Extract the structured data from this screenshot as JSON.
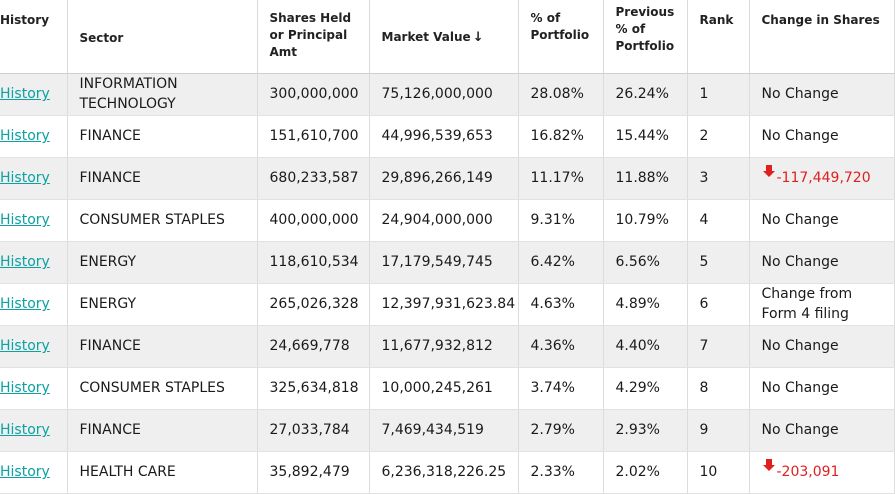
{
  "headers": {
    "history": "History",
    "sector": "Sector",
    "shares": "Shares Held or Principal Amt",
    "market_value": "Market Value",
    "market_value_sort_icon": "arrow-down-icon",
    "pct_portfolio": "% of Portfolio",
    "prev_pct_portfolio": "Previous % of Portfolio",
    "rank": "Rank",
    "change": "Change in Shares"
  },
  "colors": {
    "link": "#0aa2a2",
    "negative": "#e02020",
    "row_stripe": "#efefef"
  },
  "rows": [
    {
      "history": "History",
      "sector": "INFORMATION TECHNOLOGY",
      "shares": "300,000,000",
      "market_value": "75,126,000,000",
      "pct": "28.08%",
      "prev_pct": "26.24%",
      "rank": "1",
      "change": "No Change",
      "change_type": "none"
    },
    {
      "history": "History",
      "sector": "FINANCE",
      "shares": "151,610,700",
      "market_value": "44,996,539,653",
      "pct": "16.82%",
      "prev_pct": "15.44%",
      "rank": "2",
      "change": "No Change",
      "change_type": "none"
    },
    {
      "history": "History",
      "sector": "FINANCE",
      "shares": "680,233,587",
      "market_value": "29,896,266,149",
      "pct": "11.17%",
      "prev_pct": "11.88%",
      "rank": "3",
      "change": "-117,449,720",
      "change_type": "decrease"
    },
    {
      "history": "History",
      "sector": "CONSUMER STAPLES",
      "shares": "400,000,000",
      "market_value": "24,904,000,000",
      "pct": "9.31%",
      "prev_pct": "10.79%",
      "rank": "4",
      "change": "No Change",
      "change_type": "none"
    },
    {
      "history": "History",
      "sector": "ENERGY",
      "shares": "118,610,534",
      "market_value": "17,179,549,745",
      "pct": "6.42%",
      "prev_pct": "6.56%",
      "rank": "5",
      "change": "No Change",
      "change_type": "none"
    },
    {
      "history": "History",
      "sector": "ENERGY",
      "shares": "265,026,328",
      "market_value": "12,397,931,623.84",
      "pct": "4.63%",
      "prev_pct": "4.89%",
      "rank": "6",
      "change": "Change from Form 4 filing",
      "change_type": "note"
    },
    {
      "history": "History",
      "sector": "FINANCE",
      "shares": "24,669,778",
      "market_value": "11,677,932,812",
      "pct": "4.36%",
      "prev_pct": "4.40%",
      "rank": "7",
      "change": "No Change",
      "change_type": "none"
    },
    {
      "history": "History",
      "sector": "CONSUMER STAPLES",
      "shares": "325,634,818",
      "market_value": "10,000,245,261",
      "pct": "3.74%",
      "prev_pct": "4.29%",
      "rank": "8",
      "change": "No Change",
      "change_type": "none"
    },
    {
      "history": "History",
      "sector": "FINANCE",
      "shares": "27,033,784",
      "market_value": "7,469,434,519",
      "pct": "2.79%",
      "prev_pct": "2.93%",
      "rank": "9",
      "change": "No Change",
      "change_type": "none"
    },
    {
      "history": "History",
      "sector": "HEALTH CARE",
      "shares": "35,892,479",
      "market_value": "6,236,318,226.25",
      "pct": "2.33%",
      "prev_pct": "2.02%",
      "rank": "10",
      "change": "-203,091",
      "change_type": "decrease"
    }
  ]
}
